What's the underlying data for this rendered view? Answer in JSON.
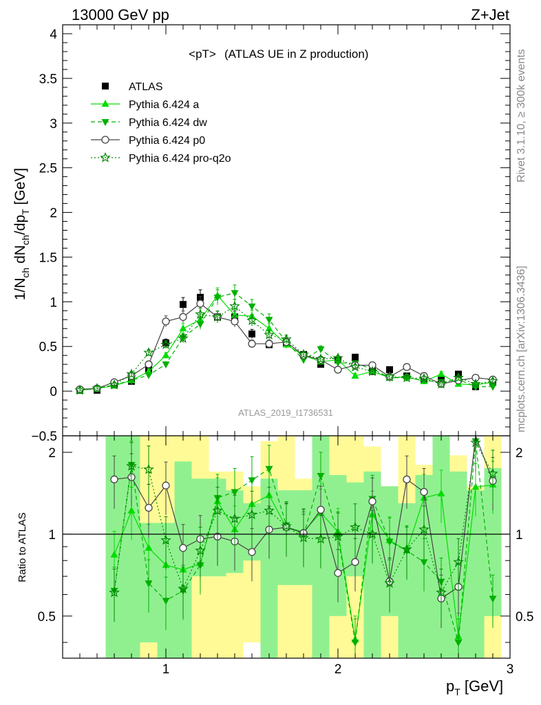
{
  "header": {
    "left": "13000 GeV pp",
    "right": "Z+Jet"
  },
  "side_text": {
    "rivet": "Rivet 3.1.10, ≥ 300k events",
    "mcplots": "mcplots.cern.ch [arXiv:1306.3436]"
  },
  "chart_data": [
    {
      "type": "scatter",
      "title_main": "<pT>",
      "title_sub": "(ATLAS UE in Z production)",
      "analysis_tag": "ATLAS_2019_I1736531",
      "ylabel": "1/N_ch dN_ch/dp_T [GeV]",
      "xlim": [
        0.4,
        3.0
      ],
      "ylim": [
        -0.5,
        4.1
      ],
      "yticks": [
        "−0.5",
        "0",
        "0.5",
        "1",
        "1.5",
        "2",
        "2.5",
        "3",
        "3.5",
        "4"
      ],
      "x": [
        0.5,
        0.6,
        0.7,
        0.8,
        0.9,
        1.0,
        1.1,
        1.2,
        1.3,
        1.4,
        1.5,
        1.6,
        1.7,
        1.8,
        1.9,
        2.0,
        2.1,
        2.2,
        2.3,
        2.4,
        2.5,
        2.6,
        2.7,
        2.8,
        2.9
      ],
      "series": [
        {
          "name": "ATLAS",
          "color": "#000000",
          "values": [
            0.01,
            0.01,
            0.07,
            0.11,
            0.25,
            0.54,
            0.97,
            1.05,
            0.83,
            0.83,
            0.64,
            0.52,
            0.54,
            0.41,
            0.3,
            0.35,
            0.38,
            0.22,
            0.24,
            0.17,
            0.13,
            0.13,
            0.19,
            0.05,
            0.1
          ]
        },
        {
          "name": "Pythia 6.424 a",
          "color": "#00dd00",
          "values": [
            0.01,
            0.03,
            0.06,
            0.12,
            0.22,
            0.4,
            0.7,
            0.8,
            1.07,
            0.85,
            0.84,
            0.7,
            0.52,
            0.4,
            0.33,
            0.35,
            0.17,
            0.22,
            0.15,
            0.16,
            0.11,
            0.19,
            0.08,
            0.07,
            0.1
          ]
        },
        {
          "name": "Pythia 6.424 dw",
          "color": "#00b000",
          "values": [
            0.01,
            0.03,
            0.07,
            0.12,
            0.18,
            0.3,
            0.6,
            0.75,
            1.05,
            1.1,
            0.95,
            0.8,
            0.55,
            0.35,
            0.47,
            0.32,
            0.31,
            0.25,
            0.15,
            0.15,
            0.12,
            0.1,
            0.13,
            0.05,
            0.05
          ]
        },
        {
          "name": "Pythia 6.424 p0",
          "color": "#444444",
          "values": [
            0.02,
            0.03,
            0.1,
            0.17,
            0.3,
            0.78,
            0.83,
            0.98,
            0.83,
            0.78,
            0.53,
            0.53,
            0.55,
            0.4,
            0.35,
            0.24,
            0.29,
            0.29,
            0.16,
            0.27,
            0.17,
            0.08,
            0.12,
            0.15,
            0.13
          ]
        },
        {
          "name": "Pythia 6.424 pro-q2o",
          "color": "#008800",
          "values": [
            0.01,
            0.03,
            0.07,
            0.19,
            0.43,
            0.52,
            0.59,
            0.86,
            0.83,
            0.95,
            0.79,
            0.63,
            0.58,
            0.41,
            0.36,
            0.37,
            0.27,
            0.22,
            0.16,
            0.15,
            0.14,
            0.08,
            0.15,
            0.08,
            0.11
          ]
        }
      ],
      "legend_position": "top-left"
    },
    {
      "type": "scatter",
      "ylabel": "Ratio to ATLAS",
      "xlabel": "p_T [GeV]",
      "xlim": [
        0.4,
        3.0
      ],
      "ylim": [
        0.35,
        2.3
      ],
      "xticks": [
        "1",
        "2",
        "3"
      ],
      "yticks": [
        "0.5",
        "1",
        "2"
      ],
      "reference": 1,
      "x": [
        0.5,
        0.6,
        0.7,
        0.8,
        0.9,
        1.0,
        1.1,
        1.2,
        1.3,
        1.4,
        1.5,
        1.6,
        1.7,
        1.8,
        1.9,
        2.0,
        2.1,
        2.2,
        2.3,
        2.4,
        2.5,
        2.6,
        2.7,
        2.8,
        2.9
      ],
      "series": [
        {
          "name": "Pythia 6.424 a",
          "values": [
            null,
            null,
            0.84,
            1.22,
            0.89,
            0.77,
            0.74,
            0.78,
            1.32,
            1.04,
            1.29,
            1.39,
            1.06,
            1.02,
            1.2,
            1.02,
            0.41,
            1.18,
            0.95,
            0.87,
            1.36,
            1.41,
            0.42,
            1.49,
            1.52
          ]
        },
        {
          "name": "Pythia 6.424 dw",
          "values": [
            null,
            null,
            0.62,
            1.8,
            0.66,
            0.57,
            0.62,
            0.77,
            1.36,
            1.43,
            1.58,
            1.74,
            1.08,
            0.99,
            1.64,
            0.99,
            0.4,
            1.35,
            0.94,
            0.87,
            0.79,
            0.67,
            0.4,
            2.2,
            0.58
          ]
        },
        {
          "name": "Pythia 6.424 p0",
          "values": [
            null,
            null,
            1.59,
            1.62,
            1.25,
            1.51,
            0.89,
            0.96,
            0.98,
            0.94,
            0.86,
            1.04,
            1.06,
            1.01,
            1.23,
            0.72,
            0.79,
            1.32,
            0.67,
            1.59,
            1.43,
            0.58,
            0.64,
            2.35,
            1.57
          ]
        },
        {
          "name": "Pythia 6.424 pro-q2o",
          "values": [
            null,
            null,
            0.61,
            1.78,
            1.73,
            0.95,
            0.63,
            0.87,
            1.22,
            1.14,
            1.18,
            1.22,
            1.07,
            0.97,
            0.96,
            0.98,
            1.06,
            1.0,
            0.66,
            0.88,
            1.04,
            0.61,
            0.79,
            2.17,
            1.67
          ]
        }
      ],
      "bands": {
        "colors": {
          "inner": "#90f090",
          "outer": "#fffa96"
        },
        "inner": [
          [
            null,
            null
          ],
          [
            null,
            null
          ],
          [
            0.35,
            2.3
          ],
          [
            0.35,
            2.3
          ],
          [
            0.4,
            1.1
          ],
          [
            0.35,
            1.1
          ],
          [
            0.35,
            1.85
          ],
          [
            0.7,
            1.6
          ],
          [
            0.7,
            1.6
          ],
          [
            0.72,
            1.45
          ],
          [
            0.8,
            1.3
          ],
          [
            0.35,
            1.6
          ],
          [
            0.65,
            1.45
          ],
          [
            0.65,
            1.45
          ],
          [
            0.35,
            2.3
          ],
          [
            0.5,
            1.65
          ],
          [
            0.7,
            1.55
          ],
          [
            0.35,
            1.7
          ],
          [
            0.5,
            1.5
          ],
          [
            0.35,
            1.3
          ],
          [
            0.35,
            1.65
          ],
          [
            0.35,
            2.3
          ],
          [
            0.35,
            1.7
          ],
          [
            0.35,
            1.45
          ],
          [
            0.5,
            1.75
          ]
        ],
        "outer": [
          [
            null,
            null
          ],
          [
            null,
            null
          ],
          [
            0.35,
            2.2
          ],
          [
            0.35,
            2.3
          ],
          [
            0.35,
            2.3
          ],
          [
            0.35,
            2.3
          ],
          [
            0.35,
            2.3
          ],
          [
            0.35,
            2.3
          ],
          [
            0.35,
            1.7
          ],
          [
            0.35,
            1.7
          ],
          [
            0.4,
            1.5
          ],
          [
            0.35,
            2.2
          ],
          [
            0.35,
            2.3
          ],
          [
            0.35,
            1.6
          ],
          [
            0.35,
            2.3
          ],
          [
            0.35,
            2.3
          ],
          [
            0.35,
            2.3
          ],
          [
            0.35,
            2.1
          ],
          [
            0.35,
            1.5
          ],
          [
            0.35,
            2.3
          ],
          [
            0.35,
            1.8
          ],
          [
            0.35,
            2.3
          ],
          [
            0.35,
            1.95
          ],
          [
            0.35,
            1.5
          ],
          [
            0.35,
            2.3
          ]
        ]
      }
    }
  ]
}
